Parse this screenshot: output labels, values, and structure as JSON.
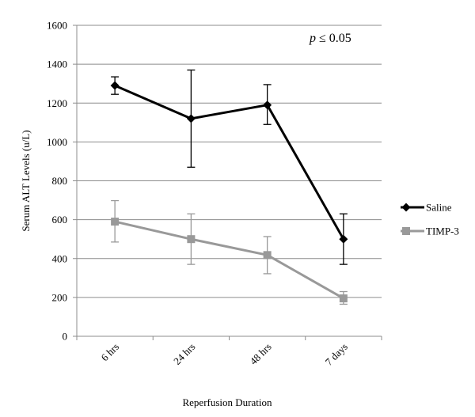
{
  "chart_data": {
    "type": "line",
    "title": "",
    "xlabel": "Reperfusion Duration",
    "ylabel": "Serum ALT Levels (u/L)",
    "categories": [
      "6 hrs",
      "24 hrs",
      "48 hrs",
      "7 days"
    ],
    "ylim": [
      0,
      1600
    ],
    "yticks": [
      0,
      200,
      400,
      600,
      800,
      1000,
      1200,
      1400,
      1600
    ],
    "ytick_labels": [
      "0",
      "200",
      "400",
      "600",
      "800",
      "1000",
      "1200",
      "1400",
      "1600"
    ],
    "grid": "horizontal",
    "legend": "right",
    "annotation": {
      "italic": "p",
      "text": " ≤ 0.05"
    },
    "series": [
      {
        "name": "Saline",
        "color": "#000000",
        "marker": "diamond",
        "values": [
          1290,
          1120,
          1190,
          500
        ],
        "err_low": [
          1245,
          870,
          1090,
          370
        ],
        "err_high": [
          1335,
          1370,
          1295,
          630
        ]
      },
      {
        "name": "TIMP-3",
        "color": "#999999",
        "marker": "square",
        "values": [
          590,
          500,
          418,
          195
        ],
        "err_low": [
          485,
          370,
          322,
          165
        ],
        "err_high": [
          698,
          630,
          513,
          230
        ]
      }
    ]
  }
}
